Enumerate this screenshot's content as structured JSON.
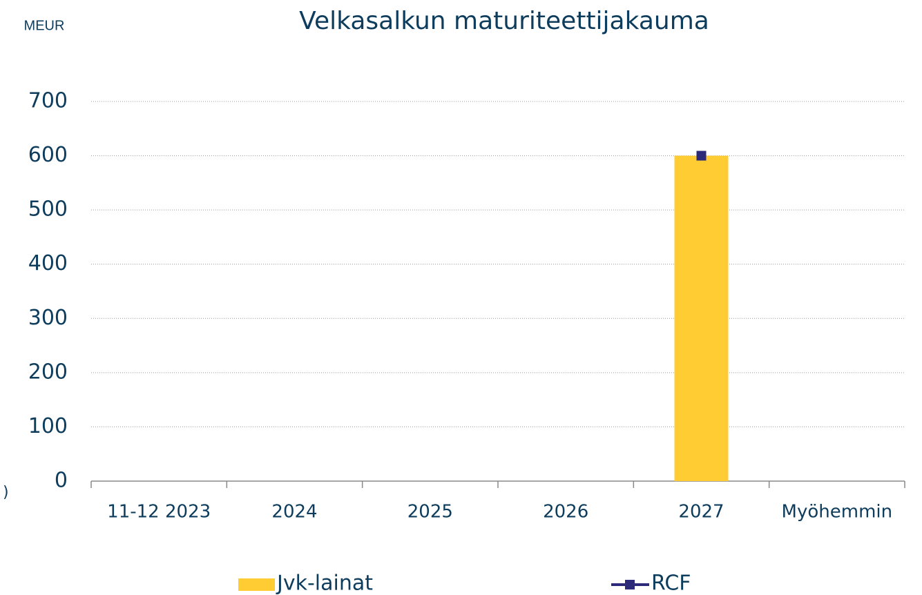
{
  "chart_data": {
    "type": "bar",
    "title": "Velkasalkun maturiteettijakauma",
    "y_axis_label": "MEUR",
    "annotation": ")",
    "categories": [
      "11-12 2023",
      "2024",
      "2025",
      "2026",
      "2027",
      "Myöhemmin"
    ],
    "series": [
      {
        "name": "Jvk-lainat",
        "type": "bar",
        "color": "#ffcc33",
        "values": [
          0,
          0,
          0,
          0,
          600,
          0
        ]
      },
      {
        "name": "RCF",
        "type": "line",
        "color": "#2e2a7a",
        "values": [
          null,
          null,
          null,
          null,
          600,
          null
        ]
      }
    ],
    "ylim": [
      0,
      700
    ],
    "yticks": [
      0,
      100,
      200,
      300,
      400,
      500,
      600,
      700
    ],
    "grid": true
  }
}
